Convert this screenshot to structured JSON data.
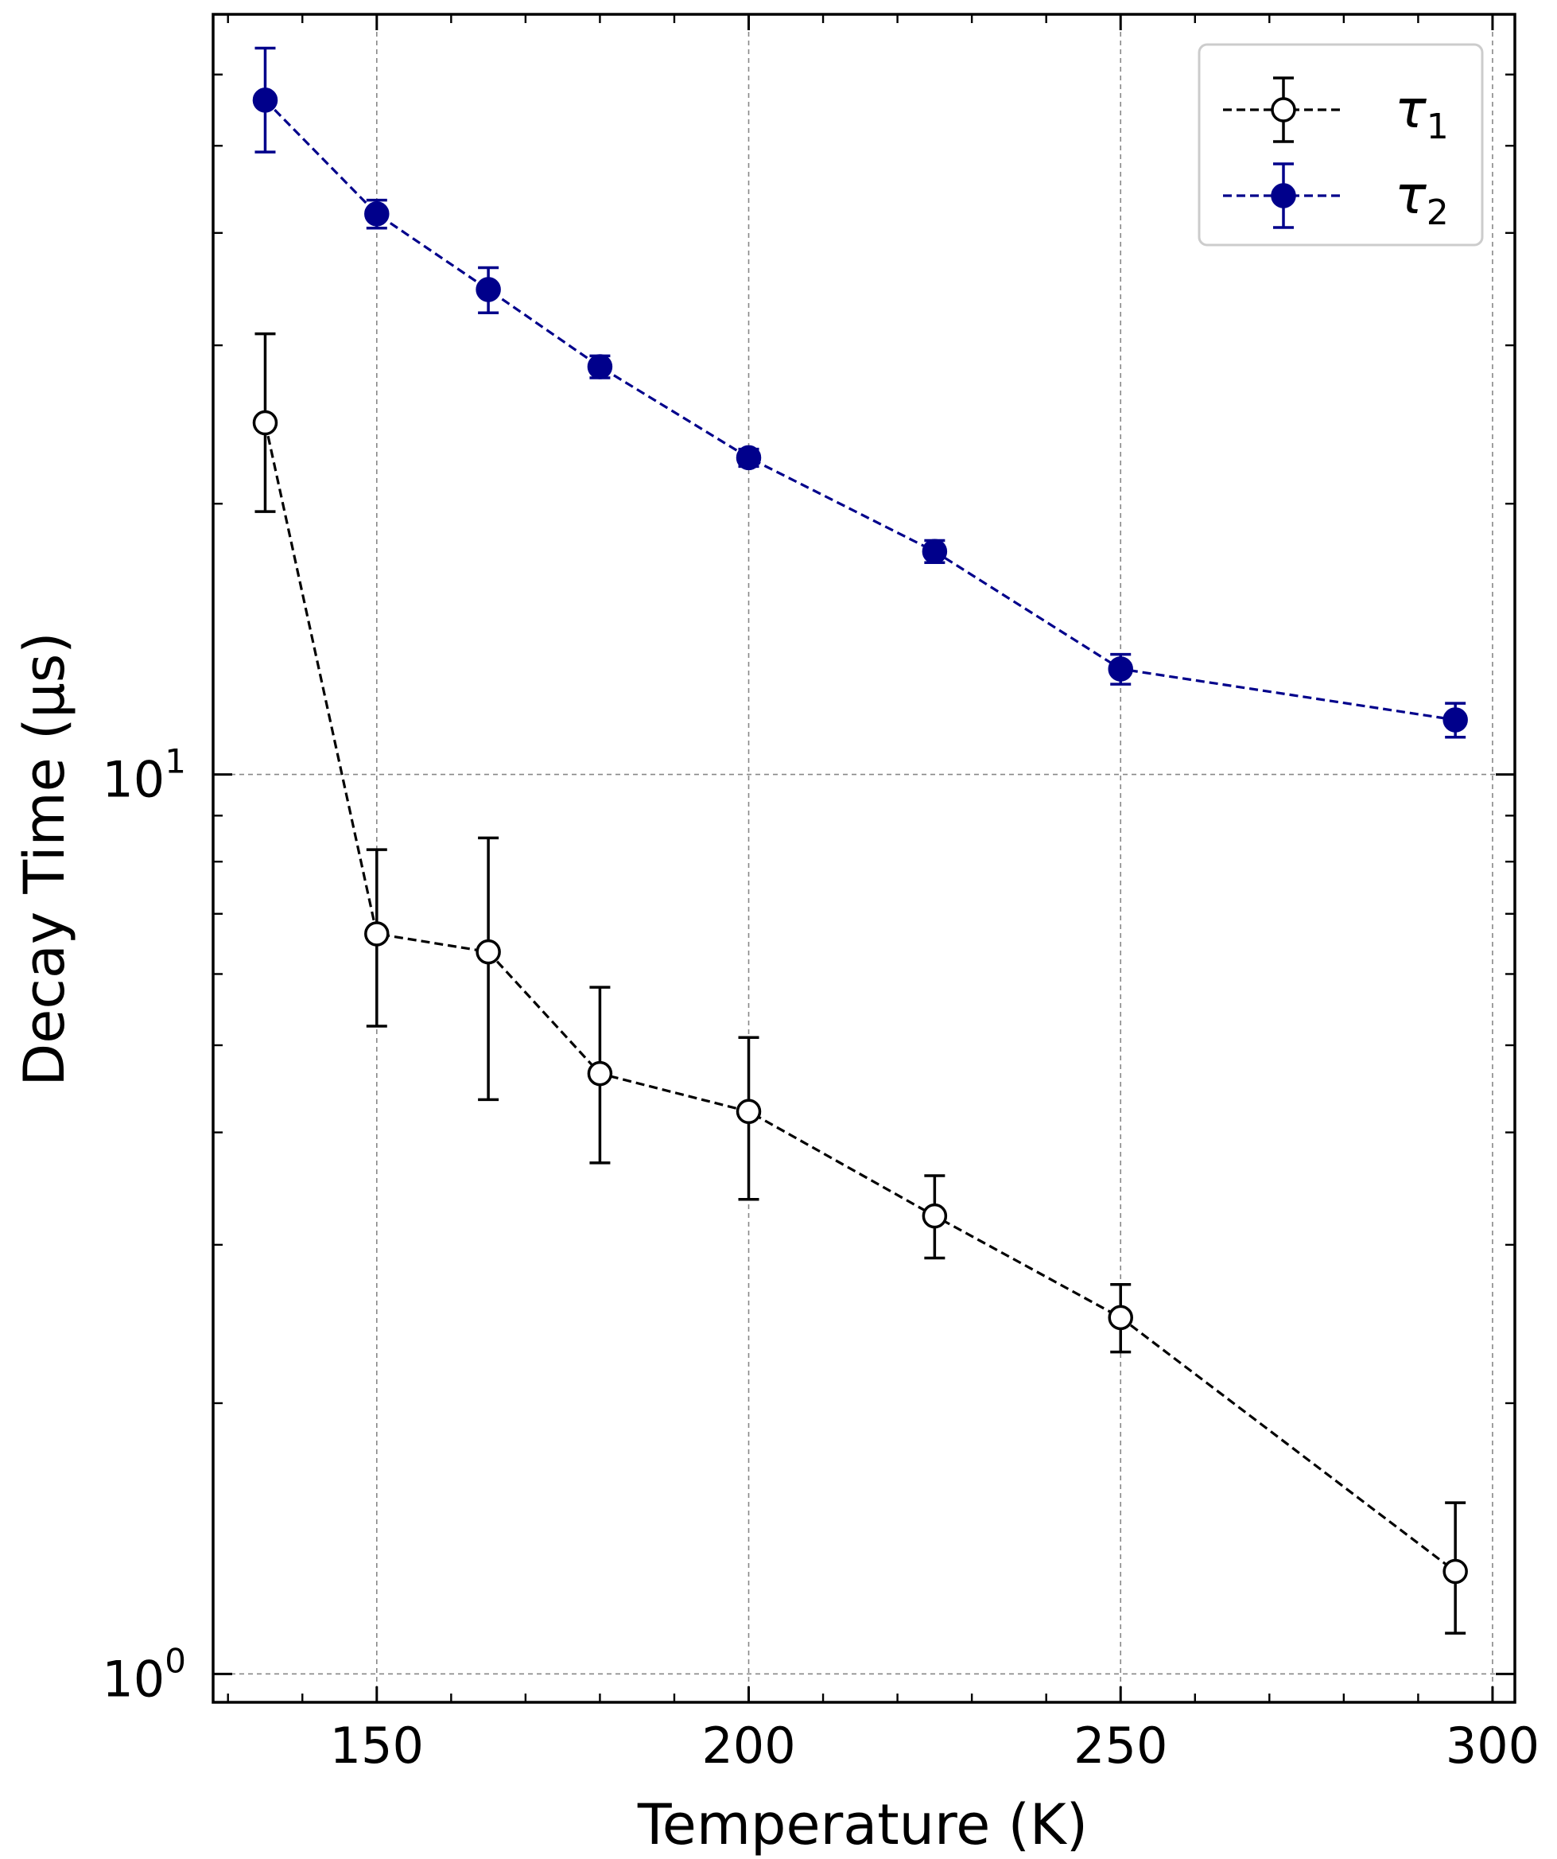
{
  "chart_data": {
    "type": "scatter",
    "xlabel": "Temperature (K)",
    "ylabel": "Decay Time (μs)",
    "yscale": "log",
    "xlim": [
      128,
      303
    ],
    "ylim": [
      0.93,
      70
    ],
    "grid": true,
    "legend_position": "top-right",
    "x_ticks": [
      {
        "value": 150,
        "label": "150"
      },
      {
        "value": 200,
        "label": "200"
      },
      {
        "value": 250,
        "label": "250"
      },
      {
        "value": 300,
        "label": "300"
      }
    ],
    "y_ticks": [
      {
        "value": 1,
        "base": "10",
        "exp": "0"
      },
      {
        "value": 10,
        "base": "10",
        "exp": "1"
      }
    ],
    "series": [
      {
        "name": "τ1",
        "legend_symbol": "τ",
        "legend_sub": "1",
        "color": "#000000",
        "marker_fill": "#ffffff",
        "x": [
          135,
          150,
          165,
          180,
          200,
          225,
          250,
          295
        ],
        "y": [
          24.6,
          6.65,
          6.35,
          4.65,
          4.22,
          3.23,
          2.49,
          1.3
        ],
        "err_low": [
          5.0,
          1.4,
          2.0,
          0.95,
          0.85,
          0.33,
          0.21,
          0.19
        ],
        "err_high": [
          6.3,
          1.6,
          2.15,
          1.15,
          0.88,
          0.35,
          0.22,
          0.25
        ]
      },
      {
        "name": "τ2",
        "legend_symbol": "τ",
        "legend_sub": "2",
        "color": "#00008b",
        "marker_fill": "#00008b",
        "x": [
          135,
          150,
          165,
          180,
          200,
          225,
          250,
          295
        ],
        "y": [
          56.2,
          42.0,
          34.6,
          28.4,
          22.5,
          17.7,
          13.1,
          11.5
        ],
        "err_low": [
          7.0,
          1.5,
          2.0,
          0.8,
          0.5,
          0.5,
          0.5,
          0.5
        ],
        "err_high": [
          8.0,
          1.5,
          2.0,
          0.8,
          0.5,
          0.5,
          0.5,
          0.5
        ]
      }
    ]
  }
}
